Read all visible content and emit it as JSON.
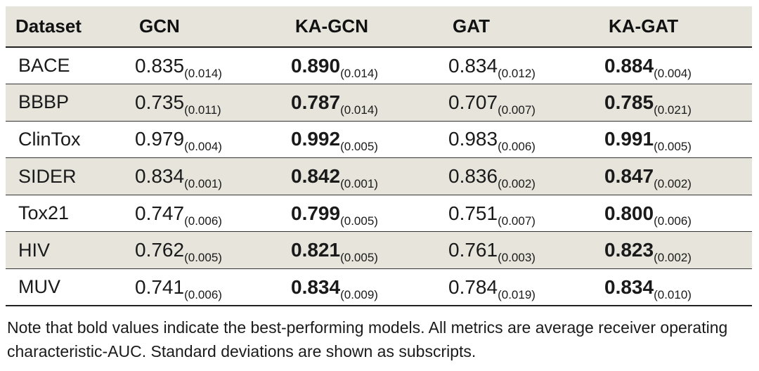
{
  "table": {
    "headers": [
      "Dataset",
      "GCN",
      "KA-GCN",
      "GAT",
      "KA-GAT"
    ],
    "rows": [
      {
        "dataset": "BACE",
        "cells": [
          {
            "value": "0.835",
            "sd": "(0.014)",
            "bold": false
          },
          {
            "value": "0.890",
            "sd": "(0.014)",
            "bold": true
          },
          {
            "value": "0.834",
            "sd": "(0.012)",
            "bold": false
          },
          {
            "value": "0.884",
            "sd": "(0.004)",
            "bold": true
          }
        ]
      },
      {
        "dataset": "BBBP",
        "cells": [
          {
            "value": "0.735",
            "sd": "(0.011)",
            "bold": false
          },
          {
            "value": "0.787",
            "sd": "(0.014)",
            "bold": true
          },
          {
            "value": "0.707",
            "sd": "(0.007)",
            "bold": false
          },
          {
            "value": "0.785",
            "sd": "(0.021)",
            "bold": true
          }
        ]
      },
      {
        "dataset": "ClinTox",
        "cells": [
          {
            "value": "0.979",
            "sd": "(0.004)",
            "bold": false
          },
          {
            "value": "0.992",
            "sd": "(0.005)",
            "bold": true
          },
          {
            "value": "0.983",
            "sd": "(0.006)",
            "bold": false
          },
          {
            "value": "0.991",
            "sd": "(0.005)",
            "bold": true
          }
        ]
      },
      {
        "dataset": "SIDER",
        "cells": [
          {
            "value": "0.834",
            "sd": "(0.001)",
            "bold": false
          },
          {
            "value": "0.842",
            "sd": "(0.001)",
            "bold": true
          },
          {
            "value": "0.836",
            "sd": "(0.002)",
            "bold": false
          },
          {
            "value": "0.847",
            "sd": "(0.002)",
            "bold": true
          }
        ]
      },
      {
        "dataset": "Tox21",
        "cells": [
          {
            "value": "0.747",
            "sd": "(0.006)",
            "bold": false
          },
          {
            "value": "0.799",
            "sd": "(0.005)",
            "bold": true
          },
          {
            "value": "0.751",
            "sd": "(0.007)",
            "bold": false
          },
          {
            "value": "0.800",
            "sd": "(0.006)",
            "bold": true
          }
        ]
      },
      {
        "dataset": "HIV",
        "cells": [
          {
            "value": "0.762",
            "sd": "(0.005)",
            "bold": false
          },
          {
            "value": "0.821",
            "sd": "(0.005)",
            "bold": true
          },
          {
            "value": "0.761",
            "sd": "(0.003)",
            "bold": false
          },
          {
            "value": "0.823",
            "sd": "(0.002)",
            "bold": true
          }
        ]
      },
      {
        "dataset": "MUV",
        "cells": [
          {
            "value": "0.741",
            "sd": "(0.006)",
            "bold": false
          },
          {
            "value": "0.834",
            "sd": "(0.009)",
            "bold": true
          },
          {
            "value": "0.784",
            "sd": "(0.019)",
            "bold": false
          },
          {
            "value": "0.834",
            "sd": "(0.010)",
            "bold": true
          }
        ]
      }
    ]
  },
  "note": {
    "text": "Note that bold values indicate the best-performing models. All metrics are average receiver operating characteristic-AUC. Standard deviations are shown as subscripts."
  },
  "colors": {
    "stripe": "#e7e4dc",
    "rule": "#222222",
    "text": "#1a1a1a"
  }
}
